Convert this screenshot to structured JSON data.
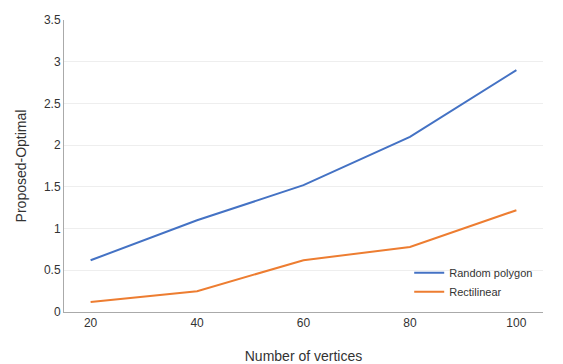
{
  "chart_data": {
    "type": "line",
    "x": [
      20,
      40,
      60,
      80,
      100
    ],
    "series": [
      {
        "name": "Random polygon",
        "color": "#4472C4",
        "values": [
          0.62,
          1.1,
          1.52,
          2.1,
          2.9
        ]
      },
      {
        "name": "Rectilinear",
        "color": "#ED7D31",
        "values": [
          0.12,
          0.25,
          0.62,
          0.78,
          1.22
        ]
      }
    ],
    "xlabel": "Number of vertices",
    "ylabel": "Proposed-Optimal",
    "xlim": [
      15,
      105
    ],
    "ylim": [
      0,
      3.5
    ],
    "xticks": [
      20,
      40,
      60,
      80,
      100
    ],
    "yticks": [
      0,
      0.5,
      1,
      1.5,
      2,
      2.5,
      3,
      3.5
    ],
    "grid": true,
    "legend": "lower right"
  }
}
